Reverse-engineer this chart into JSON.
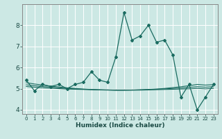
{
  "xlabel": "Humidex (Indice chaleur)",
  "bg_color": "#cce8e4",
  "line_color": "#1a6b60",
  "grid_color": "#ffffff",
  "x_main": [
    0,
    1,
    2,
    3,
    4,
    5,
    6,
    7,
    8,
    9,
    10,
    11,
    12,
    13,
    14,
    15,
    16,
    17,
    18,
    19,
    20,
    21,
    22,
    23
  ],
  "y_main": [
    5.4,
    4.9,
    5.2,
    5.1,
    5.2,
    5.0,
    5.2,
    5.3,
    5.8,
    5.4,
    5.3,
    6.5,
    8.6,
    7.3,
    7.5,
    8.0,
    7.2,
    7.3,
    6.6,
    4.6,
    5.2,
    4.0,
    4.6,
    5.2
  ],
  "y_trend1": [
    5.28,
    5.22,
    5.17,
    5.12,
    5.08,
    5.04,
    5.01,
    4.98,
    4.96,
    4.94,
    4.93,
    4.92,
    4.92,
    4.93,
    4.94,
    4.96,
    4.98,
    5.01,
    5.05,
    5.09,
    5.14,
    5.2,
    5.17,
    5.19
  ],
  "y_trend2": [
    5.18,
    5.14,
    5.1,
    5.07,
    5.04,
    5.01,
    4.99,
    4.97,
    4.96,
    4.95,
    4.94,
    4.94,
    4.94,
    4.94,
    4.95,
    4.96,
    4.97,
    4.99,
    5.01,
    5.03,
    5.06,
    5.09,
    5.07,
    5.09
  ],
  "y_trend3": [
    5.1,
    5.07,
    5.04,
    5.02,
    5.0,
    4.98,
    4.97,
    4.96,
    4.95,
    4.94,
    4.94,
    4.93,
    4.93,
    4.93,
    4.93,
    4.94,
    4.95,
    4.96,
    4.97,
    4.98,
    4.99,
    5.01,
    4.99,
    5.01
  ],
  "ylim": [
    3.8,
    9.0
  ],
  "xlim": [
    -0.5,
    23.5
  ],
  "yticks": [
    4,
    5,
    6,
    7,
    8
  ],
  "xtick_labels": [
    "0",
    "1",
    "2",
    "3",
    "4",
    "5",
    "6",
    "7",
    "8",
    "9",
    "10",
    "11",
    "12",
    "13",
    "14",
    "15",
    "16",
    "17",
    "18",
    "19",
    "20",
    "21",
    "22",
    "23"
  ],
  "xlabel_fontsize": 6.5,
  "ytick_fontsize": 6.5,
  "xtick_fontsize": 5.0
}
